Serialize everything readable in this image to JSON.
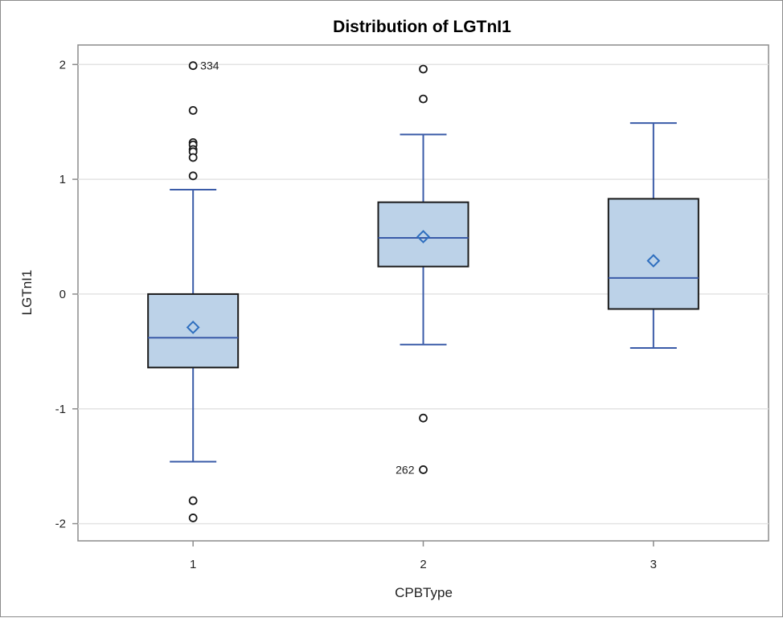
{
  "colors": {
    "box_fill": "#bcd2e8",
    "box_stroke": "#1a1a1a",
    "whisker": "#3a5ba8",
    "median": "#3a5ba8",
    "mean_marker": "#2f6fbf",
    "outlier": "#1a1a1a",
    "grid": "#e3e3e3",
    "axis": "#8c8c8c"
  },
  "chart_data": {
    "type": "box",
    "title": "Distribution of LGTnI1",
    "xlabel": "CPBType",
    "ylabel": "LGTnI1",
    "ylim": [
      -2.15,
      2.17
    ],
    "yticks": [
      -2,
      -1,
      0,
      1,
      2
    ],
    "grid": true,
    "categories": [
      "1",
      "2",
      "3"
    ],
    "boxes": [
      {
        "category": "1",
        "whisker_low": -1.46,
        "q1": -0.64,
        "median": -0.38,
        "q3": 0.0,
        "whisker_high": 0.91,
        "mean": -0.29,
        "outliers": [
          1.99,
          1.6,
          1.32,
          1.3,
          1.26,
          1.24,
          1.19,
          1.03,
          -1.8,
          -1.95
        ],
        "outlier_labels": [
          {
            "value": 1.99,
            "label": "334"
          }
        ]
      },
      {
        "category": "2",
        "whisker_low": -0.44,
        "q1": 0.24,
        "median": 0.49,
        "q3": 0.8,
        "whisker_high": 1.39,
        "mean": 0.5,
        "outliers": [
          1.96,
          1.7,
          -1.08,
          -1.53
        ],
        "outlier_labels": [
          {
            "value": -1.53,
            "label": "262"
          }
        ]
      },
      {
        "category": "3",
        "whisker_low": -0.47,
        "q1": -0.13,
        "median": 0.14,
        "q3": 0.83,
        "whisker_high": 1.49,
        "mean": 0.29,
        "outliers": [],
        "outlier_labels": []
      }
    ]
  }
}
